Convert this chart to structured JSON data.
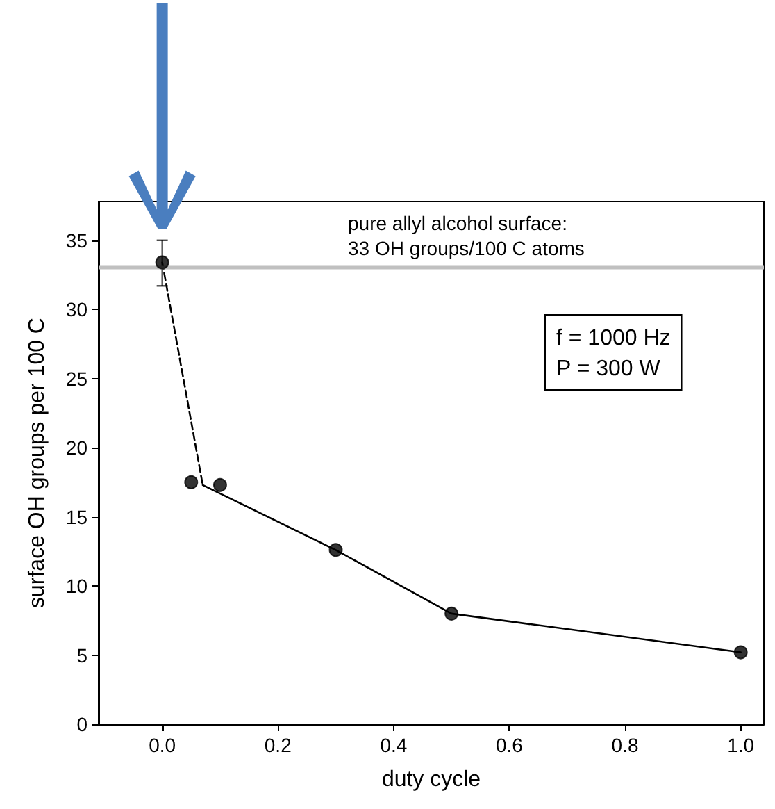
{
  "chart_data": {
    "type": "scatter",
    "xlabel": "duty cycle",
    "ylabel": "surface OH groups per 100 C",
    "xlim": [
      -0.11,
      1.04
    ],
    "xticks": [
      {
        "value": 0,
        "label": "0.0"
      },
      {
        "value": 0.2,
        "label": "0.2"
      },
      {
        "value": 0.4,
        "label": "0.4"
      },
      {
        "value": 0.6,
        "label": "0.6"
      },
      {
        "value": 0.8,
        "label": "0.8"
      },
      {
        "value": 1,
        "label": "1.0"
      }
    ],
    "ylim": [
      0,
      37.8
    ],
    "yticks": [
      0,
      5,
      10,
      15,
      20,
      25,
      30,
      35
    ],
    "grid": false,
    "series": [
      {
        "type": "scatter",
        "marker": "circle",
        "color": "#000000",
        "x": [
          0,
          0.05,
          0.1,
          0.3,
          0.5,
          1.0
        ],
        "values": [
          33.4,
          17.5,
          17.3,
          12.6,
          8.0,
          5.2
        ],
        "errors": [
          [
            31.7,
            35.0
          ],
          null,
          null,
          null,
          null,
          null
        ]
      },
      {
        "type": "line",
        "marker": "none",
        "line_style": "dashed",
        "color": "#000000",
        "x": [
          0,
          0.07
        ],
        "values": [
          33.4,
          17.3
        ]
      },
      {
        "type": "line",
        "marker": "none",
        "line_style": "solid",
        "color": "#000000",
        "x": [
          0.07,
          0.3,
          0.5,
          1.0
        ],
        "values": [
          17.3,
          12.6,
          8.0,
          5.2
        ]
      }
    ],
    "ref_lines": [
      {
        "axis": "y",
        "value": 33,
        "label": "pure allyl alcohol surface:\n33 OH groups/100 C atoms",
        "color": "#c0c0c0",
        "line_style": "solid"
      }
    ],
    "annotations": [
      "f = 1000 Hz\nP = 300 W"
    ]
  }
}
